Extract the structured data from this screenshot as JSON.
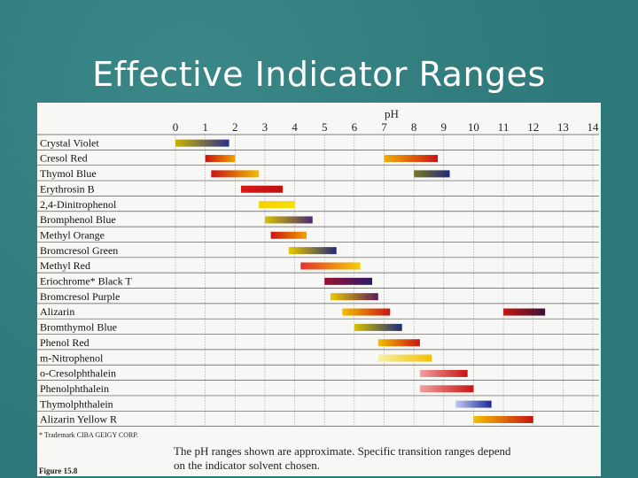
{
  "slide": {
    "title": "Effective Indicator Ranges"
  },
  "chart_data": {
    "type": "bar",
    "orientation": "horizontal-range",
    "axis_label": "pH",
    "xlim": [
      0,
      14
    ],
    "ticks": [
      "0",
      "1",
      "2",
      "3",
      "4",
      "5",
      "6",
      "7",
      "8",
      "9",
      "10",
      "11",
      "12",
      "13",
      "14"
    ],
    "grid": true,
    "indicators": [
      {
        "name": "Crystal Violet",
        "ranges": [
          {
            "from": 0.0,
            "to": 1.8,
            "colors": [
              "#c8b400",
              "#2b2f8c"
            ]
          }
        ]
      },
      {
        "name": "Cresol Red",
        "ranges": [
          {
            "from": 1.0,
            "to": 2.0,
            "colors": [
              "#c81414",
              "#f2a000"
            ]
          },
          {
            "from": 7.0,
            "to": 8.8,
            "colors": [
              "#f2b000",
              "#c81414"
            ]
          }
        ]
      },
      {
        "name": "Thymol Blue",
        "ranges": [
          {
            "from": 1.2,
            "to": 2.8,
            "colors": [
              "#c81414",
              "#f2c000"
            ]
          },
          {
            "from": 8.0,
            "to": 9.2,
            "colors": [
              "#7a7a20",
              "#23287a"
            ]
          }
        ]
      },
      {
        "name": "Erythrosin B",
        "ranges": [
          {
            "from": 2.2,
            "to": 3.6,
            "colors": [
              "#d81818",
              "#c01010"
            ]
          }
        ]
      },
      {
        "name": "2,4-Dinitrophenol",
        "ranges": [
          {
            "from": 2.8,
            "to": 4.0,
            "colors": [
              "#f5d000",
              "#f8e000"
            ]
          }
        ]
      },
      {
        "name": "Bromphenol Blue",
        "ranges": [
          {
            "from": 3.0,
            "to": 4.6,
            "colors": [
              "#d8c000",
              "#4a2a70"
            ]
          }
        ]
      },
      {
        "name": "Methyl Orange",
        "ranges": [
          {
            "from": 3.2,
            "to": 4.4,
            "colors": [
              "#c81414",
              "#f2a000"
            ]
          }
        ]
      },
      {
        "name": "Bromcresol Green",
        "ranges": [
          {
            "from": 3.8,
            "to": 5.4,
            "colors": [
              "#e8c800",
              "#202878"
            ]
          }
        ]
      },
      {
        "name": "Methyl Red",
        "ranges": [
          {
            "from": 4.2,
            "to": 6.2,
            "colors": [
              "#e83030",
              "#f2d000"
            ]
          }
        ]
      },
      {
        "name": "Eriochrome* Black T",
        "ranges": [
          {
            "from": 5.0,
            "to": 6.6,
            "colors": [
              "#9a1030",
              "#2a1a6a"
            ]
          }
        ]
      },
      {
        "name": "Bromcresol Purple",
        "ranges": [
          {
            "from": 5.2,
            "to": 6.8,
            "colors": [
              "#e8c800",
              "#5a1a5a"
            ]
          }
        ]
      },
      {
        "name": "Alizarin",
        "ranges": [
          {
            "from": 5.6,
            "to": 7.2,
            "colors": [
              "#f2c000",
              "#c81414"
            ]
          },
          {
            "from": 11.0,
            "to": 12.4,
            "colors": [
              "#c81414",
              "#3a1030"
            ]
          }
        ]
      },
      {
        "name": "Bromthymol Blue",
        "ranges": [
          {
            "from": 6.0,
            "to": 7.6,
            "colors": [
              "#d8c000",
              "#1a2a78"
            ]
          }
        ]
      },
      {
        "name": "Phenol Red",
        "ranges": [
          {
            "from": 6.8,
            "to": 8.2,
            "colors": [
              "#f2c000",
              "#c81414"
            ]
          }
        ]
      },
      {
        "name": "m-Nitrophenol",
        "ranges": [
          {
            "from": 6.8,
            "to": 8.6,
            "colors": [
              "#f8f0a0",
              "#f2c000"
            ]
          }
        ]
      },
      {
        "name": "o-Cresolphthalein",
        "ranges": [
          {
            "from": 8.2,
            "to": 9.8,
            "colors": [
              "#f0a0a0",
              "#c81414"
            ]
          }
        ]
      },
      {
        "name": "Phenolphthalein",
        "ranges": [
          {
            "from": 8.2,
            "to": 10.0,
            "colors": [
              "#f0a0a0",
              "#c81414"
            ]
          }
        ]
      },
      {
        "name": "Thymolphthalein",
        "ranges": [
          {
            "from": 9.4,
            "to": 10.6,
            "colors": [
              "#c0c8f0",
              "#1a2a9a"
            ]
          }
        ]
      },
      {
        "name": "Alizarin Yellow R",
        "ranges": [
          {
            "from": 10.0,
            "to": 12.0,
            "colors": [
              "#f2c000",
              "#c81414"
            ]
          }
        ]
      }
    ],
    "footnote": "* Trademark CIBA GEIGY CORP.",
    "note_line1": "The pH ranges shown are approximate.  Specific transition ranges depend",
    "note_line2": "on the indicator solvent chosen.",
    "figure_label": "Figure 15.8"
  }
}
